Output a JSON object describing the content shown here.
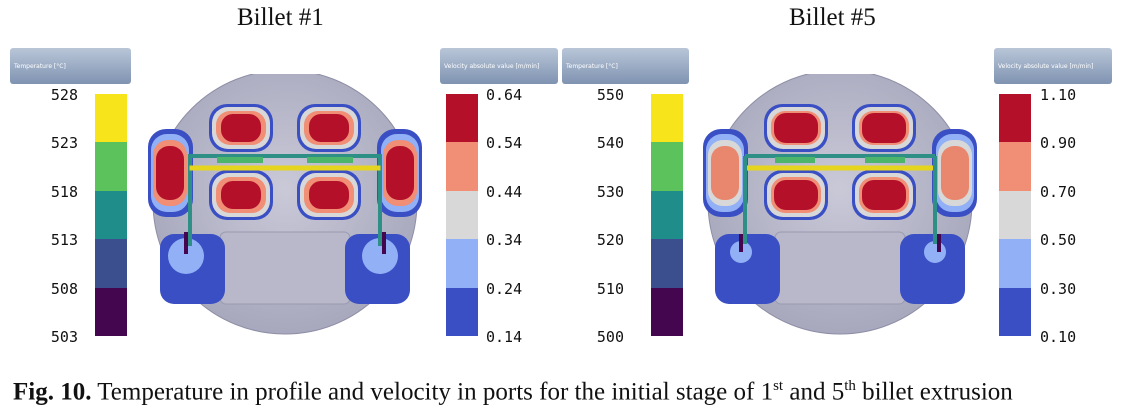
{
  "panels": [
    {
      "title": "Billet #1",
      "temp_header": "Temperature  [°C]",
      "temp_ticks": [
        "528",
        "523",
        "518",
        "513",
        "508",
        "503"
      ],
      "vel_header": "Velocity absolute value  [m/min]",
      "vel_ticks": [
        "0.64",
        "0.54",
        "0.44",
        "0.34",
        "0.24",
        "0.14"
      ]
    },
    {
      "title": "Billet #5",
      "temp_header": "Temperature  [°C]",
      "temp_ticks": [
        "550",
        "540",
        "530",
        "520",
        "510",
        "500"
      ],
      "vel_header": "Velocity absolute value  [m/min]",
      "vel_ticks": [
        "1.10",
        "0.90",
        "0.70",
        "0.50",
        "0.30",
        "0.10"
      ]
    }
  ],
  "temp_colors": [
    "#f7e41a",
    "#5bc25c",
    "#1f8e8a",
    "#3b4f8e",
    "#44064f"
  ],
  "vel_colors": [
    "#b5102a",
    "#f08e76",
    "#d8d8d8",
    "#92b0f5",
    "#3a4fc4"
  ],
  "caption": {
    "label": "Fig. 10.",
    "part1": " Temperature in profile and velocity in ports for the initial stage of 1",
    "sup1": "st",
    "part2": " and 5",
    "sup2": "th",
    "part3": " billet extrusion"
  }
}
